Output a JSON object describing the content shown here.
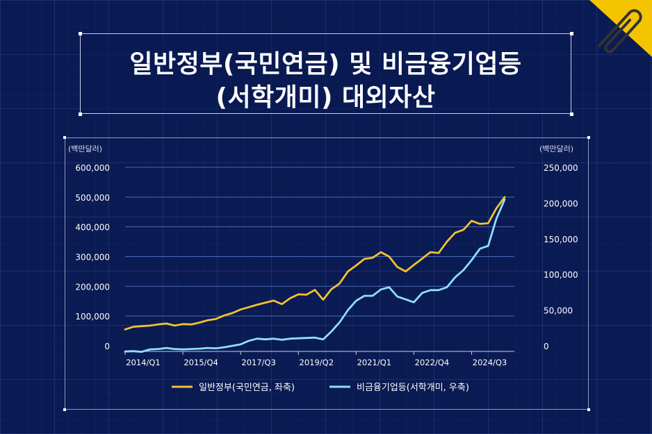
{
  "title": {
    "line1": "일반정부(국민연금) 및 비금융기업등",
    "line2": "(서학개미) 대외자산"
  },
  "colors": {
    "background": "#0a1a52",
    "series_left": "#f2c230",
    "series_right": "#8ee0ff",
    "accent": "#f5c400"
  },
  "icons": {
    "clip": "paperclip-icon"
  },
  "chart_data": {
    "type": "line",
    "left_unit": "(백만달러)",
    "right_unit": "(백만달러)",
    "x_tick_labels": [
      "2014/Q1",
      "2015/Q4",
      "2017/Q3",
      "2019/Q2",
      "2021/Q1",
      "2022/Q4",
      "2024/Q3"
    ],
    "x_tick_indices": [
      0,
      7,
      14,
      21,
      28,
      35,
      42
    ],
    "y_left": {
      "min": 0,
      "max": 600000,
      "ticks": [
        "0",
        "100,000",
        "200,000",
        "300,000",
        "400,000",
        "500,000",
        "600,000"
      ]
    },
    "y_right": {
      "min": 0,
      "max": 250000,
      "ticks": [
        "0",
        "50,000",
        "100,000",
        "150,000",
        "200,000",
        "250,000"
      ]
    },
    "grid": "horizontal",
    "legend_position": "bottom",
    "series": [
      {
        "name": "일반정부(국민연금, 좌축)",
        "axis": "left",
        "values": [
          55000,
          64000,
          66000,
          68000,
          72000,
          75000,
          68000,
          73000,
          72000,
          78000,
          86000,
          90000,
          102000,
          110000,
          122000,
          130000,
          138000,
          145000,
          152000,
          140000,
          160000,
          173000,
          172000,
          188000,
          155000,
          190000,
          210000,
          250000,
          270000,
          292000,
          296000,
          315000,
          300000,
          265000,
          250000,
          272000,
          293000,
          315000,
          312000,
          350000,
          380000,
          390000,
          420000,
          410000,
          412000,
          462000,
          500000
        ]
      },
      {
        "name": "비금융기업등(서학개미, 우축)",
        "axis": "right",
        "values": [
          -8000,
          -7500,
          -8500,
          -5000,
          -4500,
          -3000,
          -4500,
          -5000,
          -4500,
          -4000,
          -3000,
          -3500,
          -2000,
          0,
          2000,
          7000,
          10000,
          9000,
          10000,
          8500,
          10000,
          10500,
          11000,
          11500,
          9000,
          20000,
          33000,
          50000,
          63000,
          70000,
          70000,
          79000,
          82000,
          69000,
          65000,
          61000,
          74000,
          78000,
          78000,
          82000,
          96000,
          106000,
          120000,
          136000,
          140000,
          178000,
          205000
        ]
      }
    ]
  }
}
